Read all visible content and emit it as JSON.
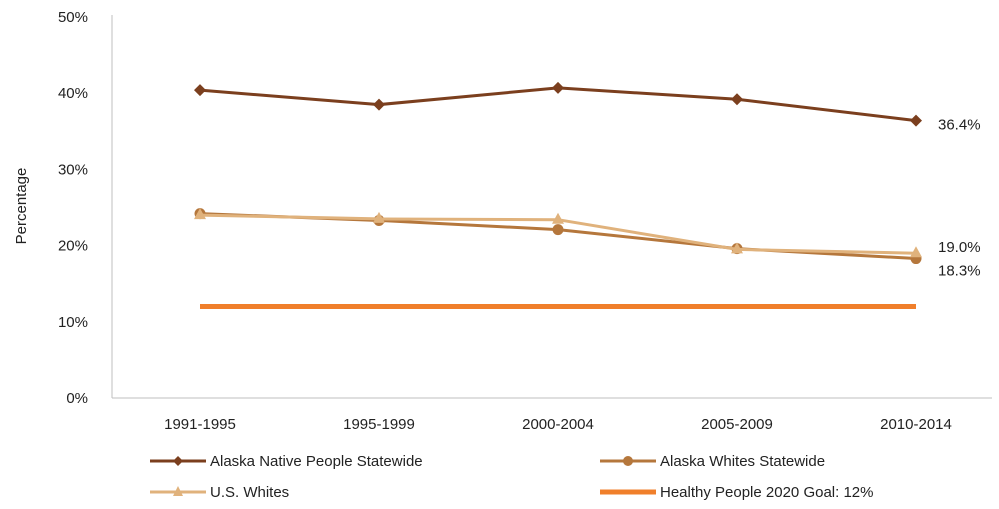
{
  "chart_data": {
    "type": "line",
    "title": "",
    "xlabel": "",
    "ylabel": "Percentage",
    "categories": [
      "1991-1995",
      "1995-1999",
      "2000-2004",
      "2005-2009",
      "2010-2014"
    ],
    "ylim": [
      0,
      50
    ],
    "yticks": [
      "0%",
      "10%",
      "20%",
      "30%",
      "40%",
      "50%"
    ],
    "grid": false,
    "legend_position": "bottom",
    "series": [
      {
        "name": "Alaska Native People Statewide",
        "values": [
          40.4,
          38.5,
          40.7,
          39.2,
          36.4
        ],
        "color": "#7b3f1e",
        "end_label": "36.4%"
      },
      {
        "name": "Alaska Whites Statewide",
        "values": [
          24.2,
          23.3,
          22.1,
          19.6,
          18.3
        ],
        "color": "#b5773c",
        "end_label": "18.3%"
      },
      {
        "name": "U.S. Whites",
        "values": [
          24.0,
          23.5,
          23.4,
          19.5,
          19.0
        ],
        "color": "#e0b27c",
        "end_label": "19.0%"
      },
      {
        "name": "Healthy People 2020 Goal: 12%",
        "values": [
          12,
          12,
          12,
          12,
          12
        ],
        "color": "#f07f2b",
        "end_label": ""
      }
    ]
  }
}
